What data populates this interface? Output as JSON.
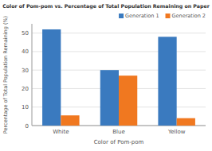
{
  "chart_data": {
    "type": "bar",
    "title": "Color of Pom-pom vs. Percentage of Total Population Remaining on Paper",
    "xlabel": "Color of Pom-pom",
    "ylabel": "Percentage of Total Population Remaining (%)",
    "categories": [
      "White",
      "Blue",
      "Yellow"
    ],
    "series": [
      {
        "name": "Generation 1",
        "color": "#3a7abf",
        "values": [
          52,
          30,
          48
        ]
      },
      {
        "name": "Generation 2",
        "color": "#f07820",
        "values": [
          5.5,
          27,
          4
        ]
      }
    ],
    "ylim": [
      0,
      55
    ],
    "yticks": [
      0,
      10,
      20,
      30,
      40,
      50
    ],
    "grid": true,
    "legend": "upper right"
  }
}
